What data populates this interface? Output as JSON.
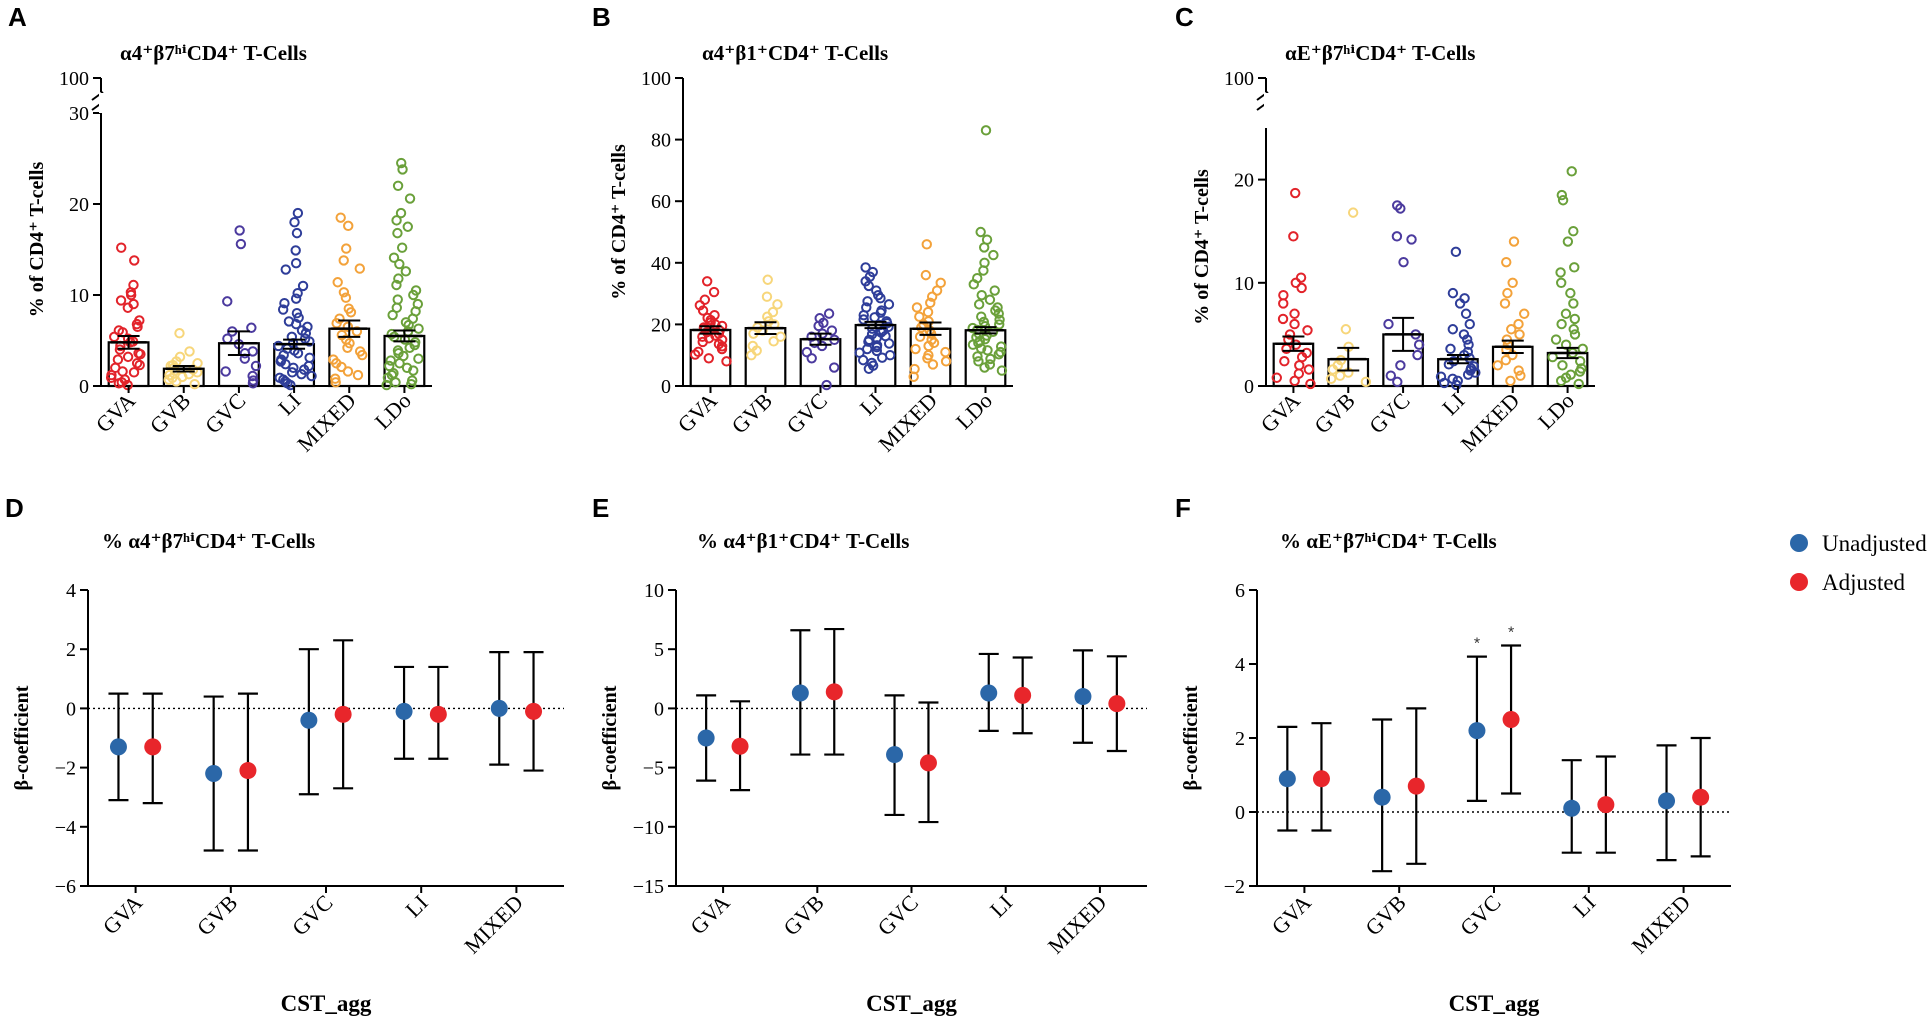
{
  "chart_data": [
    {
      "panel": "A",
      "type": "bar",
      "title": "α4⁺β7ʰⁱCD4⁺ T-Cells",
      "ylabel": "% of CD4⁺ T-cells",
      "categories": [
        "GVA",
        "GVB",
        "GVC",
        "LI",
        "MIXED",
        "LDo"
      ],
      "colors": [
        "#e2232a",
        "#f7d67a",
        "#4b3a9e",
        "#2e3d99",
        "#f3a23a",
        "#6aa03a"
      ],
      "ylim": [
        0,
        30
      ],
      "y_break": [
        30,
        100
      ],
      "yticks": [
        "0",
        "10",
        "20",
        "30",
        "100"
      ],
      "means": [
        4.8,
        1.9,
        4.7,
        4.6,
        6.3,
        5.5
      ],
      "sem": [
        0.7,
        0.3,
        1.3,
        0.5,
        0.9,
        0.6
      ],
      "points": [
        [
          15.2,
          13.8,
          11.1,
          10.3,
          10.0,
          9.4,
          9.0,
          8.6,
          7.2,
          6.8,
          6.5,
          6.1,
          5.9,
          5.4,
          5.2,
          4.9,
          4.8,
          4.4,
          4.0,
          3.6,
          3.5,
          3.2,
          2.9,
          2.5,
          2.3,
          2.0,
          1.6,
          1.5,
          1.2,
          0.9,
          0.7,
          0.4,
          0.3,
          0.1
        ],
        [
          5.8,
          3.8,
          3.2,
          2.7,
          2.5,
          2.3,
          2.2,
          2.0,
          1.8,
          1.7,
          1.5,
          1.3,
          1.2,
          1.0,
          0.9,
          0.7,
          0.5,
          0.2
        ],
        [
          17.1,
          15.6,
          9.3,
          6.4,
          6.0,
          5.2,
          4.6,
          3.8,
          3.6,
          3.0,
          2.2,
          1.6,
          1.1,
          0.6,
          0.3
        ],
        [
          19.0,
          18.0,
          16.8,
          14.9,
          13.5,
          12.8,
          11.0,
          10.2,
          9.6,
          9.1,
          8.4,
          8.0,
          7.5,
          7.1,
          6.8,
          6.5,
          6.1,
          5.8,
          5.4,
          5.2,
          4.9,
          4.7,
          4.4,
          4.1,
          3.9,
          3.6,
          3.4,
          3.1,
          2.9,
          2.7,
          2.4,
          2.2,
          2.0,
          1.8,
          1.5,
          1.3,
          1.1,
          0.9,
          0.7,
          0.5,
          0.3,
          0.1
        ],
        [
          18.5,
          17.6,
          15.1,
          13.8,
          12.9,
          11.4,
          10.3,
          9.7,
          8.5,
          8.1,
          7.4,
          6.9,
          6.5,
          6.0,
          5.6,
          5.1,
          4.7,
          4.2,
          3.8,
          3.4,
          2.9,
          2.5,
          2.1,
          1.6,
          1.2,
          0.8,
          0.4
        ],
        [
          24.5,
          23.8,
          22.0,
          20.6,
          19.0,
          18.2,
          17.5,
          16.8,
          15.2,
          14.1,
          13.4,
          12.6,
          11.8,
          11.1,
          10.5,
          10.0,
          9.5,
          9.0,
          8.6,
          8.2,
          7.8,
          7.4,
          7.0,
          6.7,
          6.3,
          6.0,
          5.7,
          5.4,
          5.1,
          4.8,
          4.5,
          4.2,
          3.9,
          3.6,
          3.3,
          3.0,
          2.8,
          2.5,
          2.2,
          2.0,
          1.7,
          1.4,
          1.2,
          0.9,
          0.6,
          0.4,
          0.2,
          0.1
        ]
      ]
    },
    {
      "panel": "B",
      "type": "bar",
      "title": "α4⁺β1⁺CD4⁺ T-Cells",
      "ylabel": "% of CD4⁺ T-cells",
      "categories": [
        "GVA",
        "GVB",
        "GVC",
        "LI",
        "MIXED",
        "LDo"
      ],
      "colors": [
        "#e2232a",
        "#f7d67a",
        "#4b3a9e",
        "#2e3d99",
        "#f3a23a",
        "#6aa03a"
      ],
      "ylim": [
        0,
        100
      ],
      "yticks": [
        "0",
        "20",
        "40",
        "60",
        "80",
        "100"
      ],
      "means": [
        18.2,
        18.8,
        15.2,
        19.8,
        18.6,
        18.1
      ],
      "sem": [
        1.2,
        1.9,
        1.8,
        1.0,
        2.0,
        1.0
      ],
      "points": [
        [
          34.0,
          30.5,
          28.0,
          26.2,
          24.5,
          23.0,
          22.1,
          21.4,
          20.6,
          20.0,
          19.5,
          19.0,
          18.5,
          18.0,
          17.5,
          17.0,
          16.4,
          16.0,
          15.5,
          15.0,
          14.3,
          13.6,
          12.9,
          12.0,
          11.1,
          10.2,
          9.0,
          8.0
        ],
        [
          34.5,
          29.0,
          26.5,
          24.0,
          22.5,
          21.0,
          20.0,
          19.0,
          18.0,
          17.0,
          16.0,
          14.5,
          13.0,
          11.5,
          10.0
        ],
        [
          23.5,
          22.0,
          20.5,
          19.5,
          18.0,
          17.0,
          16.0,
          15.0,
          14.0,
          13.0,
          11.0,
          9.0,
          6.0,
          0.3
        ],
        [
          38.5,
          37.0,
          35.5,
          34.0,
          32.5,
          31.0,
          29.5,
          28.5,
          27.5,
          26.5,
          25.5,
          24.5,
          23.8,
          23.0,
          22.3,
          21.6,
          21.0,
          20.4,
          19.8,
          19.2,
          18.6,
          18.0,
          17.4,
          16.8,
          16.2,
          15.6,
          15.0,
          14.4,
          13.8,
          13.2,
          12.6,
          12.0,
          11.4,
          10.8,
          10.0,
          9.2,
          8.4,
          7.5,
          6.6,
          5.6
        ],
        [
          46.0,
          36.0,
          33.5,
          31.0,
          29.0,
          27.0,
          25.5,
          24.0,
          22.5,
          21.0,
          20.0,
          19.0,
          18.0,
          17.0,
          16.0,
          15.0,
          14.0,
          13.0,
          12.0,
          11.0,
          10.0,
          9.0,
          8.0,
          7.0,
          5.5,
          3.0
        ],
        [
          83.0,
          50.0,
          47.5,
          45.0,
          42.5,
          40.0,
          37.5,
          35.0,
          33.0,
          31.0,
          29.5,
          28.0,
          26.5,
          25.5,
          24.5,
          23.5,
          22.5,
          21.5,
          20.8,
          20.0,
          19.4,
          18.8,
          18.2,
          17.6,
          17.0,
          16.4,
          15.8,
          15.2,
          14.6,
          14.0,
          13.4,
          12.8,
          12.2,
          11.6,
          11.0,
          10.3,
          9.6,
          8.8,
          8.0,
          7.0,
          6.0,
          5.0
        ]
      ]
    },
    {
      "panel": "C",
      "type": "bar",
      "title": "αE⁺β7ʰⁱCD4⁺ T-Cells",
      "ylabel": "% of CD4⁺ T-cells",
      "categories": [
        "GVA",
        "GVB",
        "GVC",
        "LI",
        "MIXED",
        "LDo"
      ],
      "colors": [
        "#e2232a",
        "#f7d67a",
        "#4b3a9e",
        "#2e3d99",
        "#f3a23a",
        "#6aa03a"
      ],
      "ylim": [
        0,
        25
      ],
      "y_break": [
        25,
        100
      ],
      "yticks": [
        "0",
        "10",
        "20",
        "100"
      ],
      "means": [
        4.1,
        2.6,
        5.0,
        2.6,
        3.8,
        3.2
      ],
      "sem": [
        0.7,
        1.1,
        1.6,
        0.4,
        0.6,
        0.5
      ],
      "points": [
        [
          18.7,
          14.5,
          10.5,
          10.0,
          9.5,
          8.8,
          8.0,
          7.0,
          6.5,
          6.0,
          5.4,
          5.0,
          4.5,
          4.0,
          3.6,
          3.2,
          2.8,
          2.4,
          2.0,
          1.6,
          1.2,
          0.8,
          0.5,
          0.2
        ],
        [
          16.8,
          5.5,
          3.8,
          2.5,
          2.0,
          1.6,
          1.3,
          1.0,
          0.7,
          0.4
        ],
        [
          17.5,
          17.2,
          14.5,
          14.2,
          12.0,
          6.0,
          5.0,
          4.0,
          3.0,
          2.0,
          1.0,
          0.4
        ],
        [
          13.0,
          9.0,
          8.5,
          8.0,
          7.0,
          6.0,
          5.5,
          5.0,
          4.5,
          4.0,
          3.6,
          3.3,
          3.0,
          2.7,
          2.4,
          2.1,
          1.9,
          1.7,
          1.5,
          1.3,
          1.1,
          0.9,
          0.7,
          0.5,
          0.3,
          0.1
        ],
        [
          14.0,
          12.0,
          10.0,
          9.0,
          8.0,
          7.0,
          6.0,
          5.5,
          5.0,
          4.5,
          4.0,
          3.5,
          3.0,
          2.5,
          2.0,
          1.5,
          1.0,
          0.5
        ],
        [
          20.8,
          18.5,
          18.0,
          15.0,
          14.0,
          11.5,
          11.0,
          10.0,
          9.0,
          8.0,
          7.0,
          6.5,
          6.0,
          5.5,
          5.0,
          4.5,
          4.0,
          3.6,
          3.2,
          2.8,
          2.4,
          2.0,
          1.7,
          1.4,
          1.1,
          0.8,
          0.5,
          0.2
        ]
      ]
    },
    {
      "panel": "D",
      "type": "scatter",
      "title": "% α4⁺β7ʰⁱCD4⁺ T-Cells",
      "ylabel": "β-coefficient",
      "xlabel": "CST_agg",
      "categories": [
        "GVA",
        "GVB",
        "GVC",
        "LI",
        "MIXED"
      ],
      "ylim": [
        -6,
        4
      ],
      "yticks": [
        "-6",
        "-4",
        "-2",
        "0",
        "2",
        "4"
      ],
      "series": [
        {
          "name": "Unadjusted",
          "color": "#2b67a8",
          "values": [
            -1.3,
            -2.2,
            -0.4,
            -0.1,
            0.0
          ],
          "lower": [
            -3.1,
            -4.8,
            -2.9,
            -1.7,
            -1.9
          ],
          "upper": [
            0.5,
            0.4,
            2.0,
            1.4,
            1.9
          ]
        },
        {
          "name": "Adjusted",
          "color": "#e8262b",
          "values": [
            -1.3,
            -2.1,
            -0.2,
            -0.2,
            -0.1
          ],
          "lower": [
            -3.2,
            -4.8,
            -2.7,
            -1.7,
            -2.1
          ],
          "upper": [
            0.5,
            0.5,
            2.3,
            1.4,
            1.9
          ]
        }
      ]
    },
    {
      "panel": "E",
      "type": "scatter",
      "title": "% α4⁺β1⁺CD4⁺ T-Cells",
      "ylabel": "β-coefficient",
      "xlabel": "CST_agg",
      "categories": [
        "GVA",
        "GVB",
        "GVC",
        "LI",
        "MIXED"
      ],
      "ylim": [
        -15,
        10
      ],
      "yticks": [
        "-15",
        "-10",
        "-5",
        "0",
        "5",
        "10"
      ],
      "series": [
        {
          "name": "Unadjusted",
          "color": "#2b67a8",
          "values": [
            -2.5,
            1.3,
            -3.9,
            1.3,
            1.0
          ],
          "lower": [
            -6.1,
            -3.9,
            -9.0,
            -1.9,
            -2.9
          ],
          "upper": [
            1.1,
            6.6,
            1.1,
            4.6,
            4.9
          ]
        },
        {
          "name": "Adjusted",
          "color": "#e8262b",
          "values": [
            -3.2,
            1.4,
            -4.6,
            1.1,
            0.4
          ],
          "lower": [
            -6.9,
            -3.9,
            -9.6,
            -2.1,
            -3.6
          ],
          "upper": [
            0.6,
            6.7,
            0.5,
            4.3,
            4.4
          ]
        }
      ]
    },
    {
      "panel": "F",
      "type": "scatter",
      "title": "% αE⁺β7ʰⁱCD4⁺ T-Cells",
      "ylabel": "β-coefficient",
      "xlabel": "CST_agg",
      "categories": [
        "GVA",
        "GVB",
        "GVC",
        "LI",
        "MIXED"
      ],
      "ylim": [
        -2,
        6
      ],
      "yticks": [
        "-2",
        "0",
        "2",
        "4",
        "6"
      ],
      "annotations": [
        "*",
        "*"
      ],
      "series": [
        {
          "name": "Unadjusted",
          "color": "#2b67a8",
          "values": [
            0.9,
            0.4,
            2.2,
            0.1,
            0.3
          ],
          "lower": [
            -0.5,
            -1.6,
            0.3,
            -1.1,
            -1.3
          ],
          "upper": [
            2.3,
            2.5,
            4.2,
            1.4,
            1.8
          ]
        },
        {
          "name": "Adjusted",
          "color": "#e8262b",
          "values": [
            0.9,
            0.7,
            2.5,
            0.2,
            0.4
          ],
          "lower": [
            -0.5,
            -1.4,
            0.5,
            -1.1,
            -1.2
          ],
          "upper": [
            2.4,
            2.8,
            4.5,
            1.5,
            2.0
          ]
        }
      ]
    }
  ],
  "legend": {
    "items": [
      "Unadjusted",
      "Adjusted"
    ],
    "colors": [
      "#2b67a8",
      "#e8262b"
    ],
    "placement": "top-right"
  }
}
